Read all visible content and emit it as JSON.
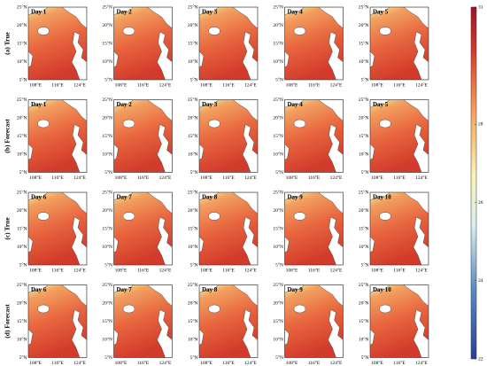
{
  "rows": [
    {
      "label": "(a) True",
      "panels": [
        "Day 1",
        "Day 2",
        "Day 3",
        "Day 4",
        "Day 5"
      ]
    },
    {
      "label": "(b) Forecast",
      "panels": [
        "Day 1",
        "Day 2",
        "Day 3",
        "Day 4",
        "Day 5"
      ]
    },
    {
      "label": "(c) True",
      "panels": [
        "Day 6",
        "Day 7",
        "Day 8",
        "Day 9",
        "Day 10"
      ]
    },
    {
      "label": "(d) Forecast",
      "panels": [
        "Day 6",
        "Day 7",
        "Day 8",
        "Day 9",
        "Day 10"
      ]
    }
  ],
  "lat_ticks": [
    "25°N",
    "20°N",
    "15°N",
    "10°N",
    "5°N"
  ],
  "lon_ticks": [
    "108°E",
    "116°E",
    "124°E"
  ],
  "colorbar": {
    "lim": [
      22,
      31
    ],
    "ticks": [
      22,
      24,
      26,
      28,
      31
    ]
  }
}
